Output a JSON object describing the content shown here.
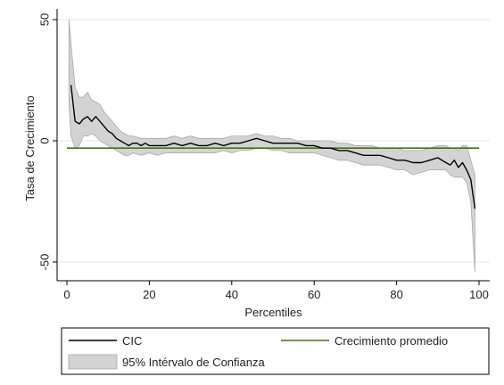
{
  "chart_data": {
    "type": "line",
    "title": "",
    "xlabel": "Percentiles",
    "ylabel": "Tasa de Crecimiento",
    "xlim": [
      0,
      100
    ],
    "ylim": [
      -50,
      50
    ],
    "xticks": [
      0,
      20,
      40,
      60,
      80,
      100
    ],
    "yticks": [
      -50,
      0,
      50
    ],
    "grid": "horizontal",
    "legend_placement": "bottom",
    "colors": {
      "cic": "#000000",
      "promedio": "#4a6e1f",
      "ci_band": "#d3d3d3",
      "ci_edge": "#a8a8a8",
      "grid": "#e6e6e6"
    },
    "series": [
      {
        "name": "CIC",
        "x": [
          1,
          2,
          3,
          4,
          5,
          6,
          7,
          8,
          9,
          10,
          11,
          12,
          13,
          14,
          15,
          16,
          17,
          18,
          19,
          20,
          22,
          24,
          26,
          28,
          30,
          32,
          34,
          36,
          38,
          40,
          42,
          44,
          46,
          48,
          50,
          52,
          54,
          56,
          58,
          60,
          62,
          64,
          66,
          68,
          70,
          72,
          74,
          76,
          78,
          80,
          82,
          84,
          86,
          88,
          90,
          91,
          92,
          93,
          94,
          95,
          96,
          97,
          98,
          99
        ],
        "y": [
          23,
          8,
          7,
          9,
          10,
          8,
          10,
          8,
          6,
          4,
          3,
          1,
          0,
          -1,
          -2,
          -1,
          -1,
          -2,
          -1,
          -2,
          -2,
          -2,
          -1,
          -2,
          -1,
          -2,
          -2,
          -1,
          -2,
          -1,
          -1,
          0,
          1,
          0,
          -1,
          -1,
          -1,
          -1,
          -2,
          -2,
          -3,
          -3,
          -4,
          -4,
          -5,
          -6,
          -6,
          -6,
          -7,
          -8,
          -8,
          -9,
          -9,
          -8,
          -7,
          -8,
          -9,
          -10,
          -8,
          -11,
          -9,
          -12,
          -16,
          -28
        ]
      },
      {
        "name": "Crecimiento promedio",
        "x": [
          0,
          100
        ],
        "y": [
          -3,
          -3
        ]
      }
    ],
    "bands": [
      {
        "name": "95% Intérvalo de Confianza",
        "x": [
          0.5,
          1,
          2,
          3,
          4,
          5,
          6,
          7,
          8,
          9,
          10,
          11,
          12,
          13,
          14,
          15,
          16,
          18,
          20,
          22,
          24,
          26,
          28,
          30,
          32,
          34,
          36,
          38,
          40,
          42,
          44,
          46,
          48,
          50,
          52,
          54,
          56,
          58,
          60,
          62,
          64,
          66,
          68,
          70,
          72,
          74,
          76,
          78,
          80,
          82,
          84,
          86,
          88,
          90,
          92,
          93,
          94,
          95,
          96,
          97,
          98,
          99
        ],
        "upper": [
          50,
          40,
          22,
          18,
          18,
          20,
          17,
          16,
          15,
          12,
          10,
          8,
          6,
          4,
          3,
          2,
          2,
          1,
          1,
          1,
          1,
          2,
          1,
          2,
          1,
          1,
          1,
          1,
          2,
          2,
          2,
          3,
          2,
          2,
          1,
          1,
          0,
          0,
          0,
          0,
          0,
          -1,
          -1,
          -2,
          -2,
          -2,
          -3,
          -3,
          -3,
          -4,
          -4,
          -4,
          -3,
          -2,
          -2,
          -3,
          -3,
          -4,
          -2,
          -2,
          -8,
          -14
        ],
        "lower": [
          15,
          2,
          -3,
          -2,
          2,
          2,
          3,
          2,
          0,
          -1,
          -2,
          -3,
          -4,
          -5,
          -6,
          -6,
          -5,
          -6,
          -5,
          -6,
          -5,
          -5,
          -5,
          -5,
          -5,
          -5,
          -5,
          -4,
          -5,
          -4,
          -4,
          -3,
          -3,
          -4,
          -4,
          -5,
          -5,
          -5,
          -5,
          -6,
          -7,
          -8,
          -8,
          -9,
          -10,
          -10,
          -10,
          -11,
          -12,
          -12,
          -14,
          -13,
          -12,
          -12,
          -12,
          -14,
          -15,
          -15,
          -15,
          -17,
          -25,
          -54
        ]
      }
    ],
    "legend": [
      {
        "label": "CIC",
        "kind": "line",
        "series": "cic"
      },
      {
        "label": "Crecimiento promedio",
        "kind": "line",
        "series": "promedio"
      },
      {
        "label": "95% Intérvalo de Confianza",
        "kind": "band",
        "series": "ci_band"
      }
    ]
  }
}
